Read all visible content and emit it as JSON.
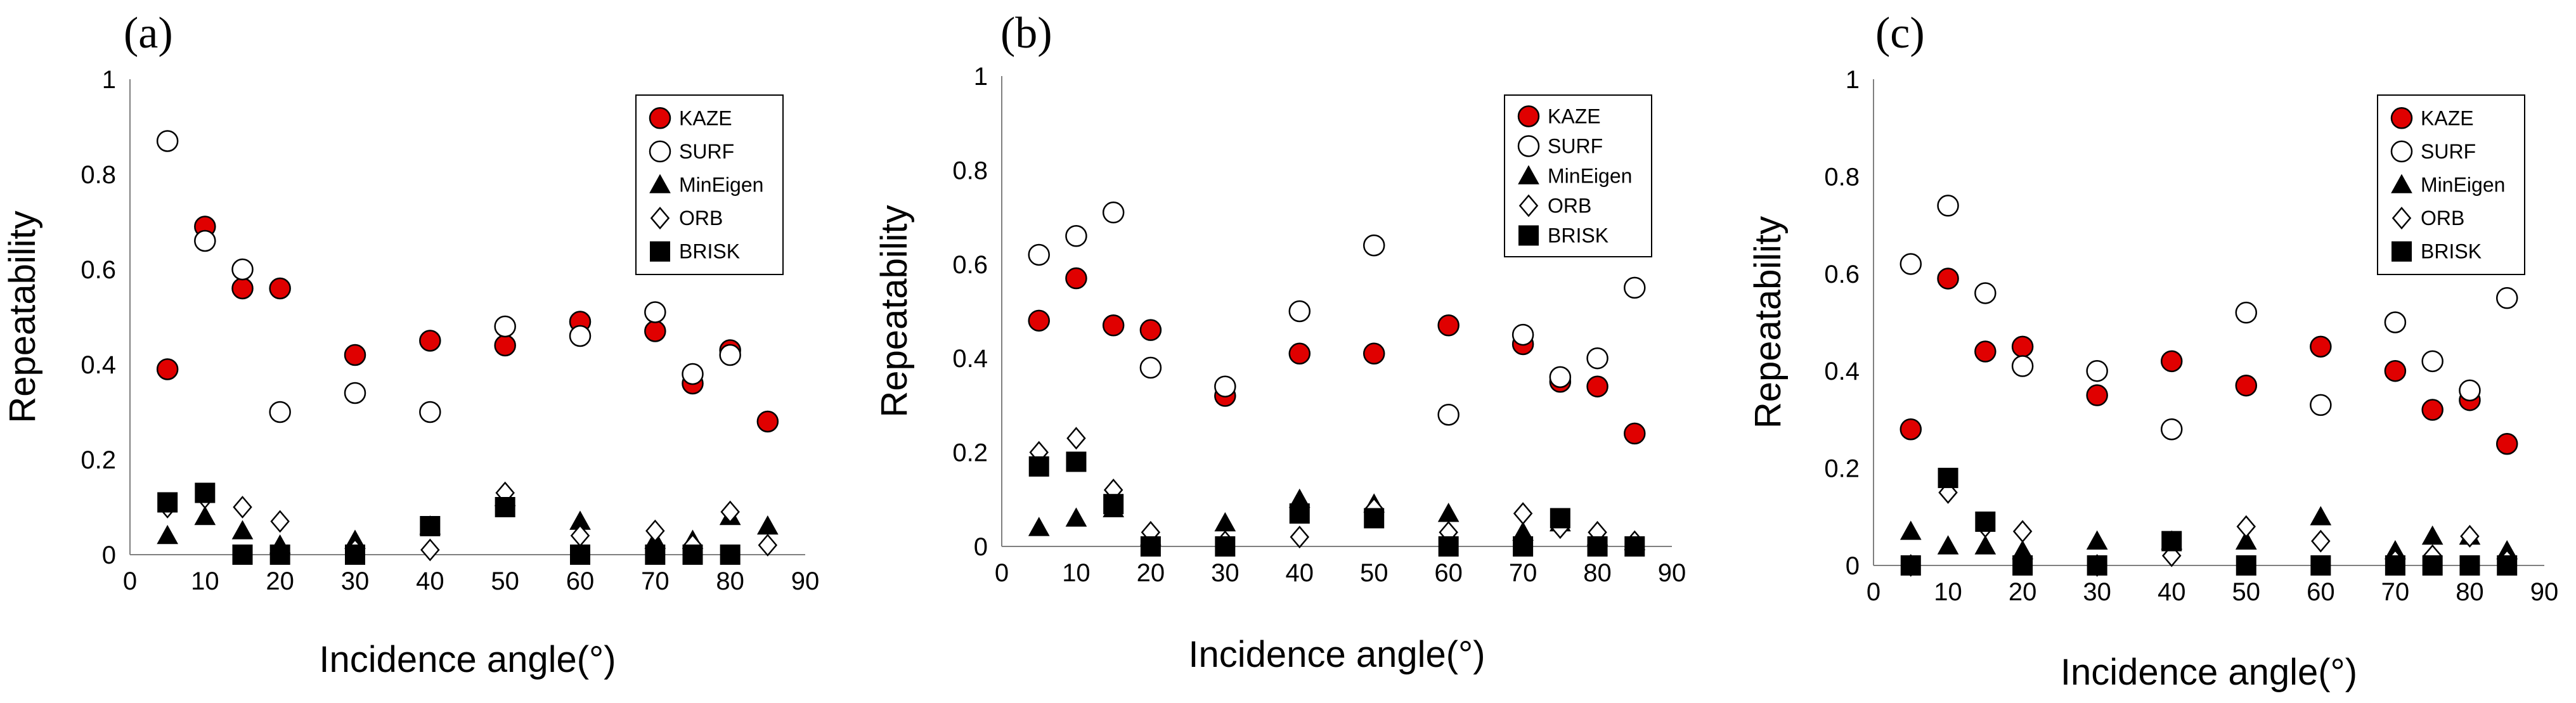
{
  "chart_data": [
    {
      "type": "scatter",
      "panel_label": "(a)",
      "xlabel": "Incidence angle(°)",
      "ylabel": "Repeatability",
      "xlim": [
        0,
        90
      ],
      "ylim": [
        0,
        1
      ],
      "xticks": [
        "0",
        "10",
        "20",
        "30",
        "40",
        "50",
        "60",
        "70",
        "80",
        "90"
      ],
      "yticks": [
        "0",
        "0.2",
        "0.4",
        "0.6",
        "0.8",
        "1"
      ],
      "legend_position": "top-right",
      "series": [
        {
          "name": "KAZE",
          "marker": "kaze",
          "x": [
            5,
            10,
            15,
            20,
            30,
            40,
            50,
            60,
            70,
            75,
            80,
            85
          ],
          "y": [
            0.39,
            0.69,
            0.56,
            0.56,
            0.42,
            0.45,
            0.44,
            0.49,
            0.47,
            0.36,
            0.43,
            0.28
          ]
        },
        {
          "name": "SURF",
          "marker": "circle-open",
          "x": [
            5,
            10,
            15,
            20,
            30,
            40,
            50,
            60,
            70,
            75,
            80
          ],
          "y": [
            0.87,
            0.66,
            0.6,
            0.3,
            0.34,
            0.3,
            0.48,
            0.46,
            0.51,
            0.38,
            0.42
          ]
        },
        {
          "name": "MinEigen",
          "marker": "triangle",
          "x": [
            5,
            10,
            15,
            20,
            30,
            40,
            50,
            60,
            70,
            75,
            80,
            85
          ],
          "y": [
            0.04,
            0.08,
            0.05,
            0.02,
            0.03,
            0.06,
            0.12,
            0.07,
            0.03,
            0.03,
            0.08,
            0.06
          ]
        },
        {
          "name": "ORB",
          "marker": "diamond-open",
          "x": [
            5,
            10,
            15,
            20,
            30,
            40,
            50,
            60,
            70,
            75,
            80,
            85
          ],
          "y": [
            0.1,
            0.12,
            0.1,
            0.07,
            0.01,
            0.01,
            0.13,
            0.04,
            0.05,
            0.02,
            0.09,
            0.02
          ]
        },
        {
          "name": "BRISK",
          "marker": "square",
          "x": [
            5,
            10,
            15,
            20,
            30,
            40,
            50,
            60,
            70,
            75,
            80
          ],
          "y": [
            0.11,
            0.13,
            0.0,
            0.0,
            0.0,
            0.06,
            0.1,
            0.0,
            0.0,
            0.0,
            0.0
          ]
        }
      ]
    },
    {
      "type": "scatter",
      "panel_label": "(b)",
      "xlabel": "Incidence angle(°)",
      "ylabel": "Repeatability",
      "xlim": [
        0,
        90
      ],
      "ylim": [
        0,
        1
      ],
      "xticks": [
        "0",
        "10",
        "20",
        "30",
        "40",
        "50",
        "60",
        "70",
        "80",
        "90"
      ],
      "yticks": [
        "0",
        "0.2",
        "0.4",
        "0.6",
        "0.8",
        "1"
      ],
      "legend_position": "top-right",
      "series": [
        {
          "name": "KAZE",
          "marker": "kaze",
          "x": [
            5,
            10,
            15,
            20,
            30,
            40,
            50,
            60,
            70,
            75,
            80,
            85
          ],
          "y": [
            0.48,
            0.57,
            0.47,
            0.46,
            0.32,
            0.41,
            0.41,
            0.47,
            0.43,
            0.35,
            0.34,
            0.24
          ]
        },
        {
          "name": "SURF",
          "marker": "circle-open",
          "x": [
            5,
            10,
            15,
            20,
            30,
            40,
            50,
            60,
            70,
            75,
            80,
            85
          ],
          "y": [
            0.62,
            0.66,
            0.71,
            0.38,
            0.34,
            0.5,
            0.64,
            0.28,
            0.45,
            0.36,
            0.4,
            0.55
          ]
        },
        {
          "name": "MinEigen",
          "marker": "triangle",
          "x": [
            5,
            10,
            15,
            20,
            30,
            40,
            50,
            60,
            70,
            75,
            80,
            85
          ],
          "y": [
            0.04,
            0.06,
            0.08,
            0.02,
            0.05,
            0.1,
            0.09,
            0.07,
            0.03,
            0.05,
            0.02,
            0.01
          ]
        },
        {
          "name": "ORB",
          "marker": "diamond-open",
          "x": [
            5,
            10,
            15,
            20,
            30,
            40,
            50,
            60,
            70,
            75,
            80,
            85
          ],
          "y": [
            0.2,
            0.23,
            0.12,
            0.03,
            0.01,
            0.02,
            0.08,
            0.03,
            0.07,
            0.04,
            0.03,
            0.01
          ]
        },
        {
          "name": "BRISK",
          "marker": "square",
          "x": [
            5,
            10,
            15,
            20,
            30,
            40,
            50,
            60,
            70,
            75,
            80,
            85
          ],
          "y": [
            0.17,
            0.18,
            0.09,
            0.0,
            0.0,
            0.07,
            0.06,
            0.0,
            0.0,
            0.06,
            0.0,
            0.0
          ]
        }
      ]
    },
    {
      "type": "scatter",
      "panel_label": "(c)",
      "xlabel": "Incidence angle(°)",
      "ylabel": "Repeatability",
      "xlim": [
        0,
        90
      ],
      "ylim": [
        0,
        1
      ],
      "xticks": [
        "0",
        "10",
        "20",
        "30",
        "40",
        "50",
        "60",
        "70",
        "80",
        "90"
      ],
      "yticks": [
        "0",
        "0.2",
        "0.4",
        "0.6",
        "0.8",
        "1"
      ],
      "legend_position": "top-right",
      "series": [
        {
          "name": "KAZE",
          "marker": "kaze",
          "x": [
            5,
            10,
            15,
            20,
            30,
            40,
            50,
            60,
            70,
            75,
            80,
            85
          ],
          "y": [
            0.28,
            0.59,
            0.44,
            0.45,
            0.35,
            0.42,
            0.37,
            0.45,
            0.4,
            0.32,
            0.34,
            0.25
          ]
        },
        {
          "name": "SURF",
          "marker": "circle-open",
          "x": [
            5,
            10,
            15,
            20,
            30,
            40,
            50,
            60,
            70,
            75,
            80,
            85
          ],
          "y": [
            0.62,
            0.74,
            0.56,
            0.41,
            0.4,
            0.28,
            0.52,
            0.33,
            0.5,
            0.42,
            0.36,
            0.55
          ]
        },
        {
          "name": "MinEigen",
          "marker": "triangle",
          "x": [
            5,
            10,
            15,
            20,
            30,
            40,
            50,
            60,
            70,
            75,
            80,
            85
          ],
          "y": [
            0.07,
            0.04,
            0.04,
            0.03,
            0.05,
            0.05,
            0.05,
            0.1,
            0.03,
            0.06,
            0.06,
            0.03
          ]
        },
        {
          "name": "ORB",
          "marker": "diamond-open",
          "x": [
            5,
            10,
            15,
            20,
            30,
            40,
            50,
            60,
            70,
            75,
            80,
            85
          ],
          "y": [
            0.0,
            0.15,
            0.08,
            0.07,
            0.0,
            0.02,
            0.08,
            0.05,
            0.01,
            0.02,
            0.06,
            0.01
          ]
        },
        {
          "name": "BRISK",
          "marker": "square",
          "x": [
            5,
            10,
            15,
            20,
            30,
            40,
            50,
            60,
            70,
            75,
            80,
            85
          ],
          "y": [
            0.0,
            0.18,
            0.09,
            0.0,
            0.0,
            0.05,
            0.0,
            0.0,
            0.0,
            0.0,
            0.0,
            0.0
          ]
        }
      ]
    }
  ]
}
